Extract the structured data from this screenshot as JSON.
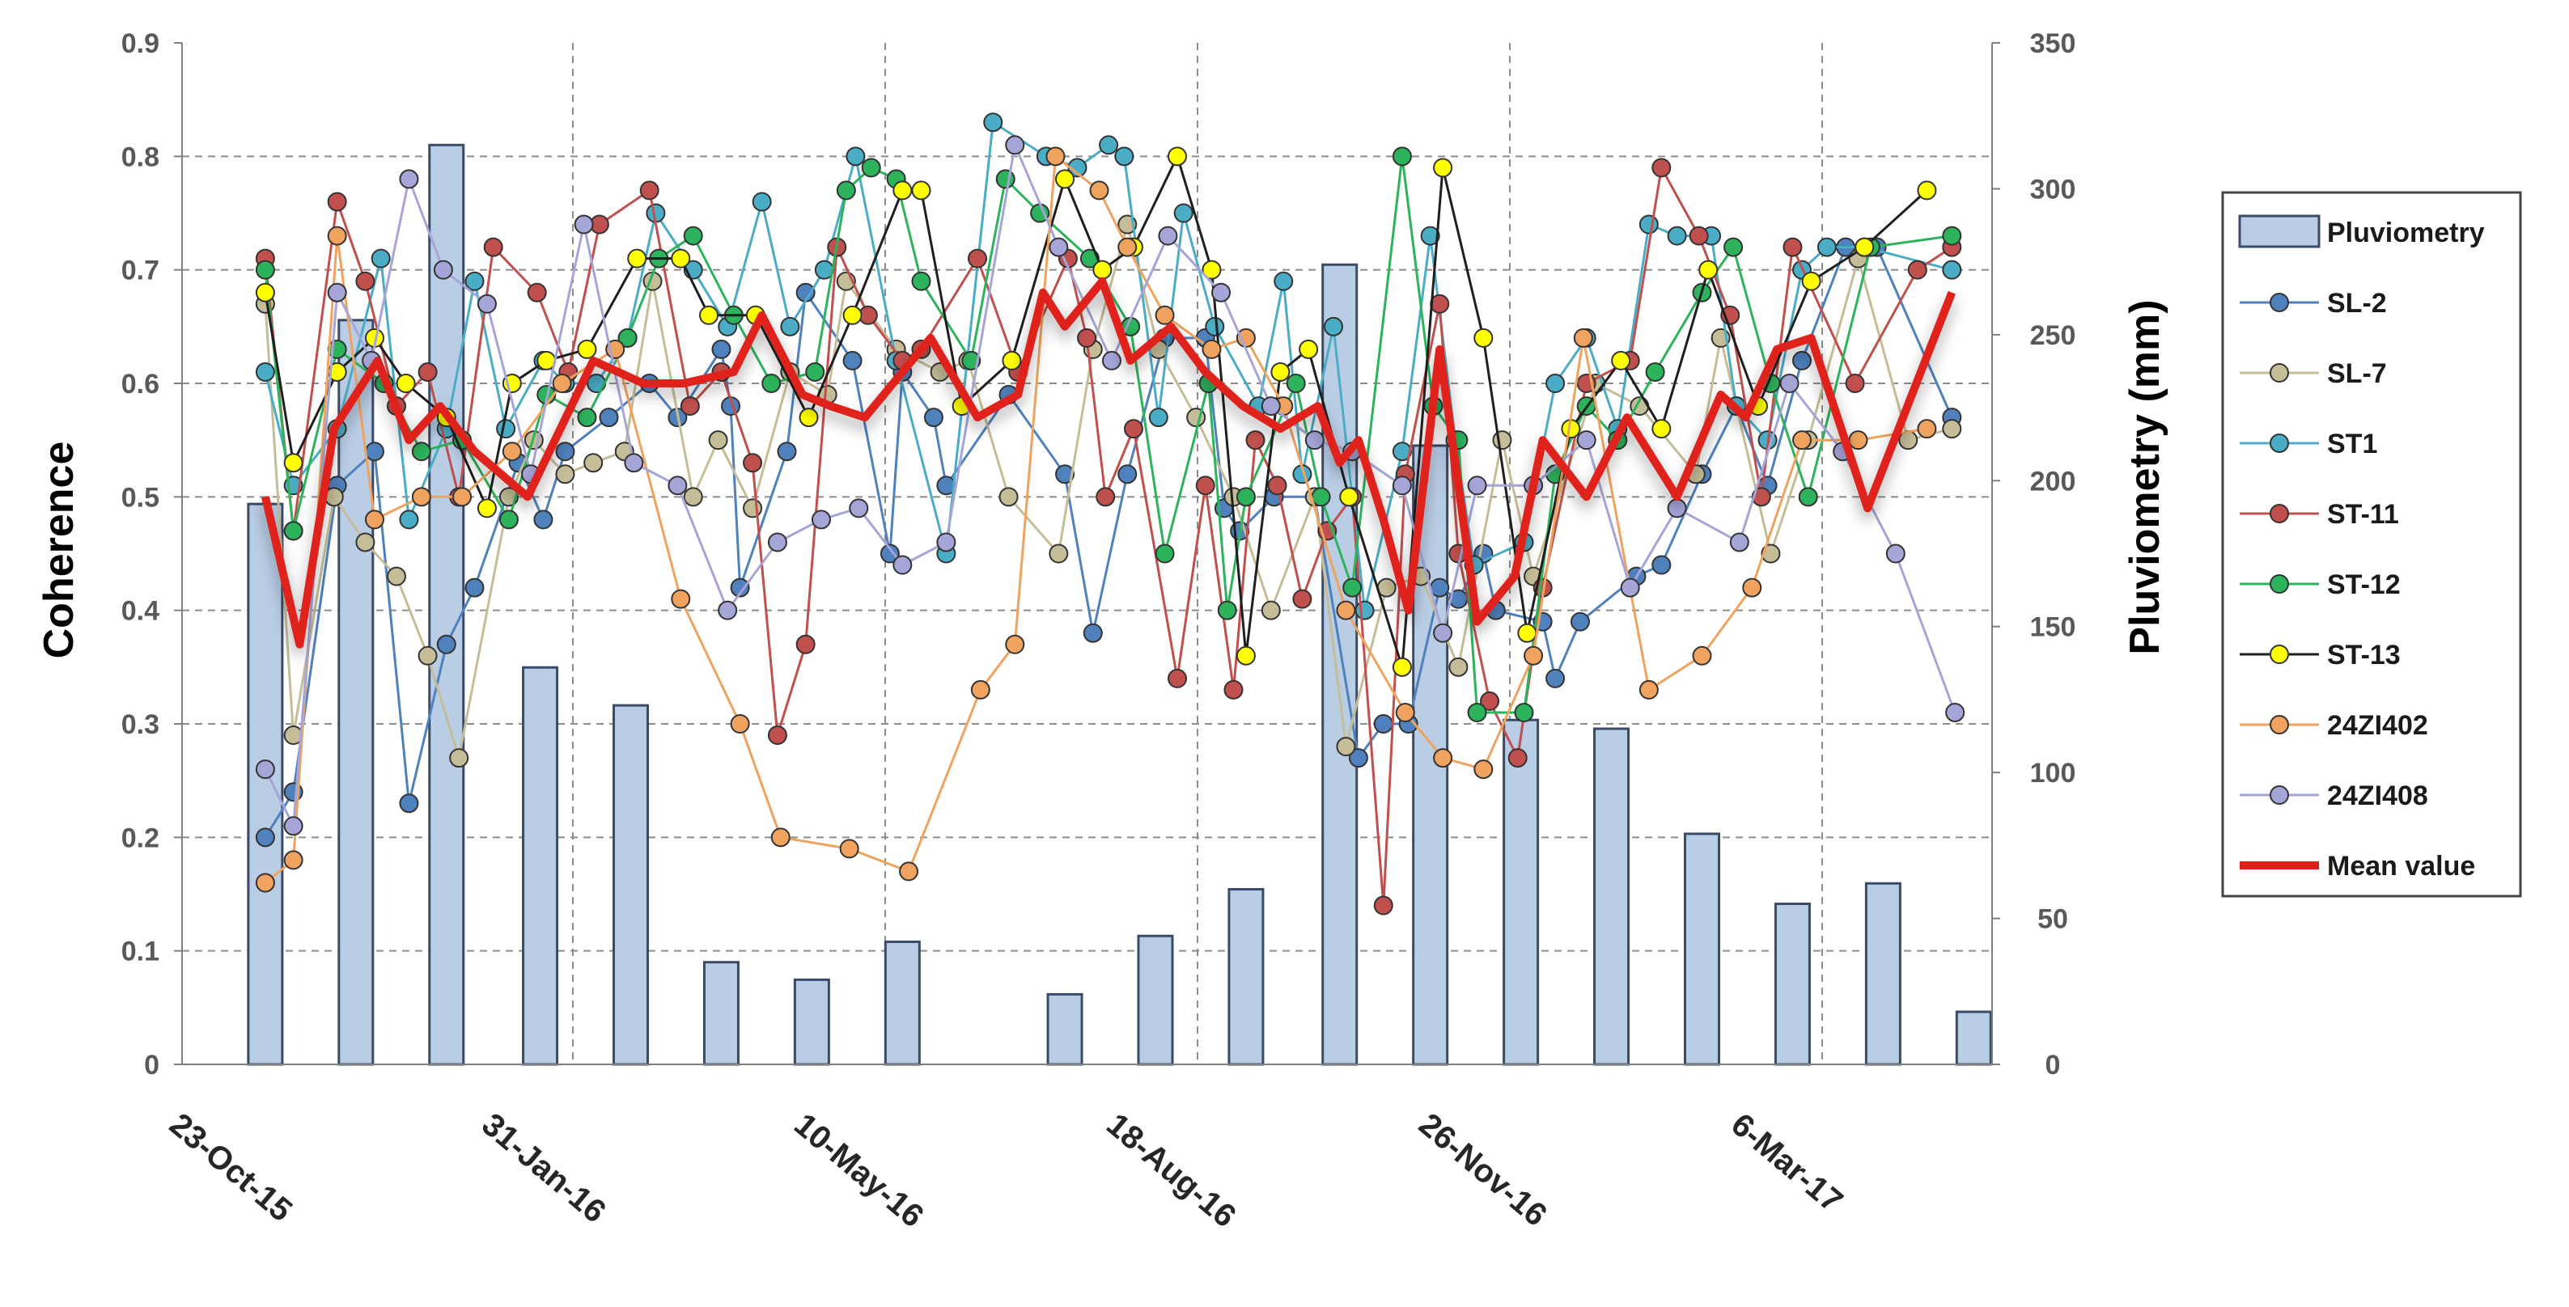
{
  "chart_data": {
    "type": "bar+line",
    "title": "",
    "left_axis": {
      "label": "Coherence",
      "min": 0,
      "max": 0.9,
      "ticks": [
        "0",
        "0.1",
        "0.2",
        "0.3",
        "0.4",
        "0.5",
        "0.6",
        "0.7",
        "0.8",
        "0.9"
      ]
    },
    "right_axis": {
      "label": "Pluviometry (mm)",
      "min": 0,
      "max": 350,
      "ticks": [
        "0",
        "50",
        "100",
        "150",
        "200",
        "250",
        "300",
        "350"
      ]
    },
    "x_labels": [
      "23-Oct-15",
      "31-Jan-16",
      "10-May-16",
      "18-Aug-16",
      "26-Nov-16",
      "6-Mar-17"
    ],
    "x_label_day_offsets": [
      0,
      100,
      200,
      300,
      400,
      500
    ],
    "x_day_range": [
      0,
      560
    ],
    "grid": true,
    "legend_position": "right",
    "pluviometry": {
      "name": "Pluviometry",
      "color": "#b9cde5",
      "edge": "#3a4a6b",
      "days": [
        8,
        37,
        66,
        96,
        125,
        154,
        183,
        212,
        264,
        293,
        322,
        352,
        381,
        410,
        439,
        468,
        497,
        526,
        555
      ],
      "values": [
        192,
        255,
        315,
        136,
        123,
        35,
        29,
        42,
        24,
        44,
        60,
        274,
        212,
        118,
        115,
        79,
        55,
        62,
        18
      ]
    },
    "series": [
      {
        "name": "SL-2",
        "color": "#4f81bd",
        "days": [
          8,
          17,
          31,
          43,
          54,
          66,
          75,
          89,
          97,
          104,
          118,
          131,
          140,
          154,
          157,
          160,
          175,
          181,
          196,
          208,
          212,
          222,
          226,
          246,
          264,
          273,
          284,
          296,
          309,
          315,
          320,
          331,
          344,
          358,
          366,
          374,
          384,
          390,
          398,
          402,
          417,
          421,
          429,
          447,
          455,
          468,
          479,
          489,
          500,
          514,
          524,
          548
        ],
        "values": [
          0.2,
          0.24,
          0.51,
          0.54,
          0.23,
          0.37,
          0.42,
          0.53,
          0.48,
          0.54,
          0.57,
          0.6,
          0.57,
          0.63,
          0.58,
          0.42,
          0.54,
          0.68,
          0.62,
          0.45,
          0.61,
          0.57,
          0.51,
          0.59,
          0.52,
          0.38,
          0.52,
          0.64,
          0.64,
          0.49,
          0.47,
          0.5,
          0.5,
          0.27,
          0.3,
          0.3,
          0.42,
          0.41,
          0.45,
          0.4,
          0.39,
          0.34,
          0.39,
          0.43,
          0.44,
          0.52,
          0.58,
          0.51,
          0.62,
          0.72,
          0.72,
          0.57
        ]
      },
      {
        "name": "SL-7",
        "color": "#c4bd97",
        "days": [
          8,
          17,
          30,
          40,
          50,
          60,
          70,
          86,
          94,
          104,
          113,
          123,
          132,
          145,
          153,
          164,
          176,
          188,
          194,
          210,
          224,
          233,
          246,
          262,
          273,
          284,
          294,
          306,
          318,
          330,
          344,
          354,
          367,
          378,
          390,
          404,
          414,
          434,
          448,
          466,
          474,
          490,
          502,
          518,
          534,
          548
        ],
        "values": [
          0.67,
          0.29,
          0.5,
          0.46,
          0.43,
          0.36,
          0.27,
          0.5,
          0.55,
          0.52,
          0.53,
          0.54,
          0.69,
          0.5,
          0.55,
          0.49,
          0.61,
          0.59,
          0.69,
          0.63,
          0.61,
          0.62,
          0.5,
          0.45,
          0.63,
          0.74,
          0.63,
          0.57,
          0.5,
          0.4,
          0.5,
          0.28,
          0.42,
          0.43,
          0.35,
          0.55,
          0.43,
          0.6,
          0.58,
          0.52,
          0.64,
          0.45,
          0.55,
          0.71,
          0.55,
          0.56
        ]
      },
      {
        "name": "ST1",
        "color": "#4bacc6",
        "days": [
          8,
          17,
          31,
          45,
          54,
          66,
          75,
          85,
          97,
          104,
          114,
          124,
          133,
          145,
          156,
          167,
          176,
          187,
          197,
          210,
          226,
          241,
          258,
          268,
          278,
          283,
          294,
          302,
          312,
          326,
          334,
          340,
          350,
          360,
          372,
          381,
          389,
          395,
          411,
          421,
          431,
          441,
          451,
          460,
          471,
          479,
          489,
          500,
          508,
          520,
          548
        ],
        "values": [
          0.61,
          0.51,
          0.56,
          0.71,
          0.48,
          0.56,
          0.69,
          0.56,
          0.62,
          0.6,
          0.6,
          0.64,
          0.75,
          0.7,
          0.65,
          0.76,
          0.65,
          0.7,
          0.8,
          0.62,
          0.45,
          0.83,
          0.8,
          0.79,
          0.81,
          0.8,
          0.57,
          0.75,
          0.65,
          0.58,
          0.69,
          0.52,
          0.65,
          0.4,
          0.54,
          0.73,
          0.55,
          0.44,
          0.46,
          0.6,
          0.64,
          0.56,
          0.74,
          0.73,
          0.73,
          0.58,
          0.55,
          0.7,
          0.72,
          0.72,
          0.7
        ]
      },
      {
        "name": "ST-11",
        "color": "#c0504d",
        "days": [
          8,
          17,
          31,
          40,
          50,
          60,
          70,
          81,
          95,
          105,
          115,
          131,
          144,
          154,
          164,
          172,
          181,
          191,
          201,
          212,
          218,
          236,
          249,
          265,
          271,
          277,
          286,
          300,
          309,
          318,
          325,
          332,
          340,
          348,
          356,
          366,
          373,
          384,
          390,
          400,
          409,
          417,
          431,
          445,
          455,
          467,
          477,
          487,
          497,
          517,
          537,
          548
        ],
        "values": [
          0.71,
          0.47,
          0.76,
          0.69,
          0.58,
          0.61,
          0.5,
          0.72,
          0.68,
          0.61,
          0.74,
          0.77,
          0.58,
          0.61,
          0.53,
          0.29,
          0.37,
          0.72,
          0.66,
          0.62,
          0.63,
          0.71,
          0.61,
          0.71,
          0.64,
          0.5,
          0.56,
          0.34,
          0.51,
          0.33,
          0.55,
          0.51,
          0.41,
          0.47,
          0.5,
          0.14,
          0.52,
          0.67,
          0.45,
          0.32,
          0.27,
          0.42,
          0.6,
          0.62,
          0.79,
          0.73,
          0.66,
          0.5,
          0.72,
          0.6,
          0.7,
          0.72
        ]
      },
      {
        "name": "ST-12",
        "color": "#2db35c",
        "days": [
          8,
          17,
          31,
          46,
          58,
          71,
          86,
          98,
          111,
          124,
          134,
          145,
          158,
          170,
          184,
          194,
          202,
          210,
          218,
          234,
          245,
          256,
          272,
          285,
          296,
          310,
          316,
          322,
          338,
          346,
          356,
          372,
          382,
          390,
          396,
          411,
          421,
          431,
          441,
          453,
          468,
          478,
          490,
          502,
          522,
          548
        ],
        "values": [
          0.7,
          0.47,
          0.63,
          0.6,
          0.54,
          0.55,
          0.48,
          0.59,
          0.57,
          0.64,
          0.71,
          0.73,
          0.66,
          0.6,
          0.61,
          0.77,
          0.79,
          0.78,
          0.69,
          0.62,
          0.78,
          0.75,
          0.71,
          0.65,
          0.45,
          0.6,
          0.4,
          0.5,
          0.6,
          0.5,
          0.42,
          0.8,
          0.58,
          0.55,
          0.31,
          0.31,
          0.52,
          0.58,
          0.55,
          0.61,
          0.68,
          0.72,
          0.6,
          0.5,
          0.72,
          0.73
        ]
      },
      {
        "name": "ST-13",
        "color": "#1f1f1f",
        "fill": "#ffff00",
        "days": [
          8,
          17,
          31,
          43,
          53,
          66,
          79,
          87,
          98,
          111,
          127,
          141,
          150,
          165,
          182,
          196,
          212,
          218,
          231,
          247,
          264,
          276,
          286,
          300,
          311,
          322,
          333,
          342,
          355,
          372,
          385,
          398,
          412,
          426,
          442,
          455,
          470,
          486,
          503,
          520,
          540
        ],
        "values": [
          0.68,
          0.53,
          0.61,
          0.64,
          0.6,
          0.57,
          0.49,
          0.6,
          0.62,
          0.63,
          0.71,
          0.71,
          0.66,
          0.66,
          0.57,
          0.66,
          0.77,
          0.77,
          0.58,
          0.62,
          0.78,
          0.7,
          0.72,
          0.8,
          0.7,
          0.36,
          0.61,
          0.63,
          0.5,
          0.35,
          0.79,
          0.64,
          0.38,
          0.56,
          0.62,
          0.56,
          0.7,
          0.58,
          0.69,
          0.72,
          0.77
        ]
      },
      {
        "name": "24ZI402",
        "color": "#f0a35e",
        "days": [
          8,
          17,
          31,
          43,
          58,
          71,
          87,
          103,
          120,
          141,
          160,
          173,
          195,
          214,
          237,
          248,
          261,
          275,
          284,
          296,
          311,
          322,
          334,
          354,
          373,
          385,
          398,
          414,
          430,
          451,
          468,
          484,
          500,
          518,
          540
        ],
        "values": [
          0.16,
          0.18,
          0.73,
          0.48,
          0.5,
          0.5,
          0.54,
          0.6,
          0.63,
          0.41,
          0.3,
          0.2,
          0.19,
          0.17,
          0.33,
          0.37,
          0.8,
          0.77,
          0.72,
          0.66,
          0.63,
          0.64,
          0.58,
          0.4,
          0.31,
          0.27,
          0.26,
          0.36,
          0.64,
          0.33,
          0.36,
          0.42,
          0.55,
          0.55,
          0.56
        ]
      },
      {
        "name": "24ZI408",
        "color": "#a5a5d8",
        "days": [
          8,
          17,
          31,
          42,
          54,
          65,
          79,
          93,
          110,
          126,
          140,
          156,
          172,
          186,
          198,
          212,
          226,
          248,
          262,
          279,
          297,
          314,
          330,
          344,
          356,
          372,
          385,
          396,
          414,
          431,
          445,
          460,
          480,
          496,
          513,
          530,
          549
        ],
        "values": [
          0.26,
          0.21,
          0.68,
          0.62,
          0.78,
          0.7,
          0.67,
          0.52,
          0.74,
          0.53,
          0.51,
          0.4,
          0.46,
          0.48,
          0.49,
          0.44,
          0.46,
          0.81,
          0.72,
          0.62,
          0.73,
          0.68,
          0.58,
          0.55,
          0.54,
          0.51,
          0.38,
          0.51,
          0.51,
          0.55,
          0.42,
          0.49,
          0.46,
          0.6,
          0.54,
          0.45,
          0.31
        ]
      }
    ],
    "mean": {
      "name": "Mean value",
      "color": "#e0201b",
      "days": [
        8,
        19,
        30,
        44,
        54,
        64,
        75,
        92,
        113,
        129,
        142,
        158,
        167,
        180,
        189,
        200,
        221,
        236,
        249,
        257,
        264,
        276,
        285,
        298,
        309,
        321,
        333,
        345,
        352,
        358,
        366,
        374,
        384,
        396,
        408,
        417,
        431,
        444,
        460,
        474,
        482,
        492,
        503,
        521,
        548
      ],
      "values": [
        0.5,
        0.37,
        0.56,
        0.62,
        0.55,
        0.58,
        0.54,
        0.5,
        0.62,
        0.6,
        0.6,
        0.61,
        0.66,
        0.59,
        0.58,
        0.57,
        0.64,
        0.57,
        0.59,
        0.68,
        0.65,
        0.69,
        0.62,
        0.65,
        0.61,
        0.58,
        0.56,
        0.58,
        0.53,
        0.55,
        0.48,
        0.4,
        0.63,
        0.39,
        0.43,
        0.55,
        0.5,
        0.57,
        0.5,
        0.59,
        0.57,
        0.63,
        0.64,
        0.49,
        0.68
      ]
    }
  }
}
